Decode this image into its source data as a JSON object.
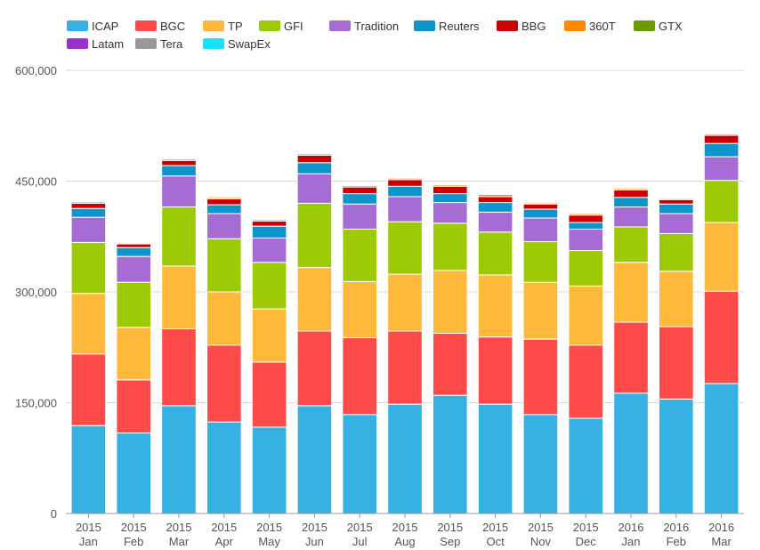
{
  "chart_data": {
    "type": "bar",
    "stacked": true,
    "title": "",
    "xlabel": "",
    "ylabel": "",
    "ylim": [
      0,
      600000
    ],
    "yticks": [
      {
        "value": 0,
        "label": "0"
      },
      {
        "value": 150000,
        "label": "150,000"
      },
      {
        "value": 300000,
        "label": "300,000"
      },
      {
        "value": 450000,
        "label": "450,000"
      },
      {
        "value": 600000,
        "label": "600,000"
      }
    ],
    "categories": [
      {
        "year": "2015",
        "month": "Jan"
      },
      {
        "year": "2015",
        "month": "Feb"
      },
      {
        "year": "2015",
        "month": "Mar"
      },
      {
        "year": "2015",
        "month": "Apr"
      },
      {
        "year": "2015",
        "month": "May"
      },
      {
        "year": "2015",
        "month": "Jun"
      },
      {
        "year": "2015",
        "month": "Jul"
      },
      {
        "year": "2015",
        "month": "Aug"
      },
      {
        "year": "2015",
        "month": "Sep"
      },
      {
        "year": "2015",
        "month": "Oct"
      },
      {
        "year": "2015",
        "month": "Nov"
      },
      {
        "year": "2015",
        "month": "Dec"
      },
      {
        "year": "2016",
        "month": "Jan"
      },
      {
        "year": "2016",
        "month": "Feb"
      },
      {
        "year": "2016",
        "month": "Mar"
      }
    ],
    "legend_position": "top-left",
    "grid": true,
    "series": [
      {
        "name": "ICAP",
        "color": "#35b1e4",
        "values": [
          119000,
          109000,
          146000,
          124000,
          117000,
          146000,
          134000,
          148000,
          160000,
          148000,
          134000,
          129000,
          163000,
          155000,
          176000
        ]
      },
      {
        "name": "BGC",
        "color": "#ff4a4a",
        "values": [
          97000,
          72000,
          104000,
          104000,
          88000,
          101000,
          104000,
          99000,
          84000,
          91000,
          102000,
          99000,
          96000,
          98000,
          125000
        ]
      },
      {
        "name": "TP",
        "color": "#ffb93a",
        "values": [
          82000,
          71000,
          85000,
          72000,
          72000,
          86000,
          76000,
          77000,
          85000,
          84000,
          77000,
          80000,
          81000,
          75000,
          93000
        ]
      },
      {
        "name": "GFI",
        "color": "#9ccb06",
        "values": [
          69000,
          61000,
          80000,
          72000,
          63000,
          87000,
          71000,
          71000,
          64000,
          58000,
          55000,
          48000,
          48000,
          51000,
          57000
        ]
      },
      {
        "name": "Tradition",
        "color": "#a76cd4",
        "values": [
          34000,
          35000,
          42000,
          34000,
          33000,
          40000,
          34000,
          34000,
          28000,
          27000,
          32000,
          29000,
          27000,
          27000,
          32000
        ]
      },
      {
        "name": "Reuters",
        "color": "#0d94c9",
        "values": [
          12000,
          12000,
          14000,
          12000,
          16000,
          15000,
          14000,
          14000,
          12000,
          13000,
          12000,
          9000,
          13000,
          13000,
          18000
        ]
      },
      {
        "name": "BBG",
        "color": "#cc0000",
        "values": [
          7000,
          5000,
          7000,
          8000,
          7000,
          10000,
          9000,
          9000,
          10000,
          8000,
          7000,
          10000,
          10000,
          6000,
          11000
        ]
      },
      {
        "name": "360T",
        "color": "#ff8a00",
        "values": [
          2000,
          1000,
          2000,
          2000,
          2000,
          2000,
          2000,
          2000,
          2000,
          3000,
          1500,
          2000,
          2000,
          1500,
          2000
        ]
      },
      {
        "name": "GTX",
        "color": "#6a9a00",
        "values": [
          1200,
          800,
          1200,
          1000,
          1000,
          1300,
          1000,
          1000,
          1000,
          1000,
          800,
          900,
          900,
          800,
          1200
        ]
      },
      {
        "name": "Latam",
        "color": "#9b30cc",
        "values": [
          300,
          200,
          300,
          300,
          300,
          300,
          300,
          300,
          300,
          300,
          300,
          300,
          300,
          300,
          300
        ]
      },
      {
        "name": "Tera",
        "color": "#999999",
        "values": [
          300,
          200,
          300,
          300,
          300,
          300,
          300,
          300,
          300,
          300,
          300,
          300,
          300,
          300,
          300
        ]
      },
      {
        "name": "SwapEx",
        "color": "#18e0ff",
        "values": [
          200,
          100,
          200,
          200,
          200,
          200,
          200,
          200,
          200,
          200,
          200,
          200,
          200,
          200,
          200
        ]
      }
    ]
  }
}
